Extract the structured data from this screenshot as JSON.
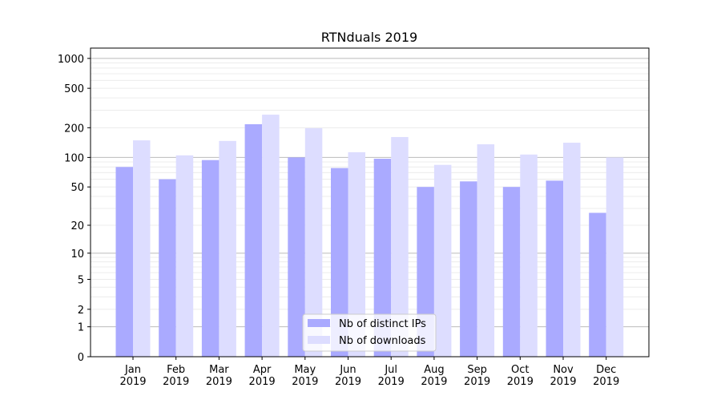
{
  "chart_data": {
    "type": "bar",
    "title": "RTNduals 2019",
    "xlabel": "",
    "ylabel": "",
    "yscale": "log10(y+1)",
    "ylim": [
      0,
      1270
    ],
    "yticks": [
      0,
      1,
      2,
      5,
      10,
      20,
      50,
      100,
      200,
      500,
      1000
    ],
    "grid": true,
    "legend_position": "lower-center",
    "categories": [
      "Jan\n2019",
      "Feb\n2019",
      "Mar\n2019",
      "Apr\n2019",
      "May\n2019",
      "Jun\n2019",
      "Jul\n2019",
      "Aug\n2019",
      "Sep\n2019",
      "Oct\n2019",
      "Nov\n2019",
      "Dec\n2019"
    ],
    "series": [
      {
        "name": "Nb of distinct IPs",
        "color": "#aaaaff",
        "values": [
          80,
          60,
          94,
          217,
          100,
          78,
          97,
          50,
          57,
          50,
          58,
          27
        ]
      },
      {
        "name": "Nb of downloads",
        "color": "#ddddff",
        "values": [
          149,
          105,
          147,
          271,
          198,
          113,
          161,
          84,
          136,
          107,
          141,
          100
        ]
      }
    ]
  }
}
